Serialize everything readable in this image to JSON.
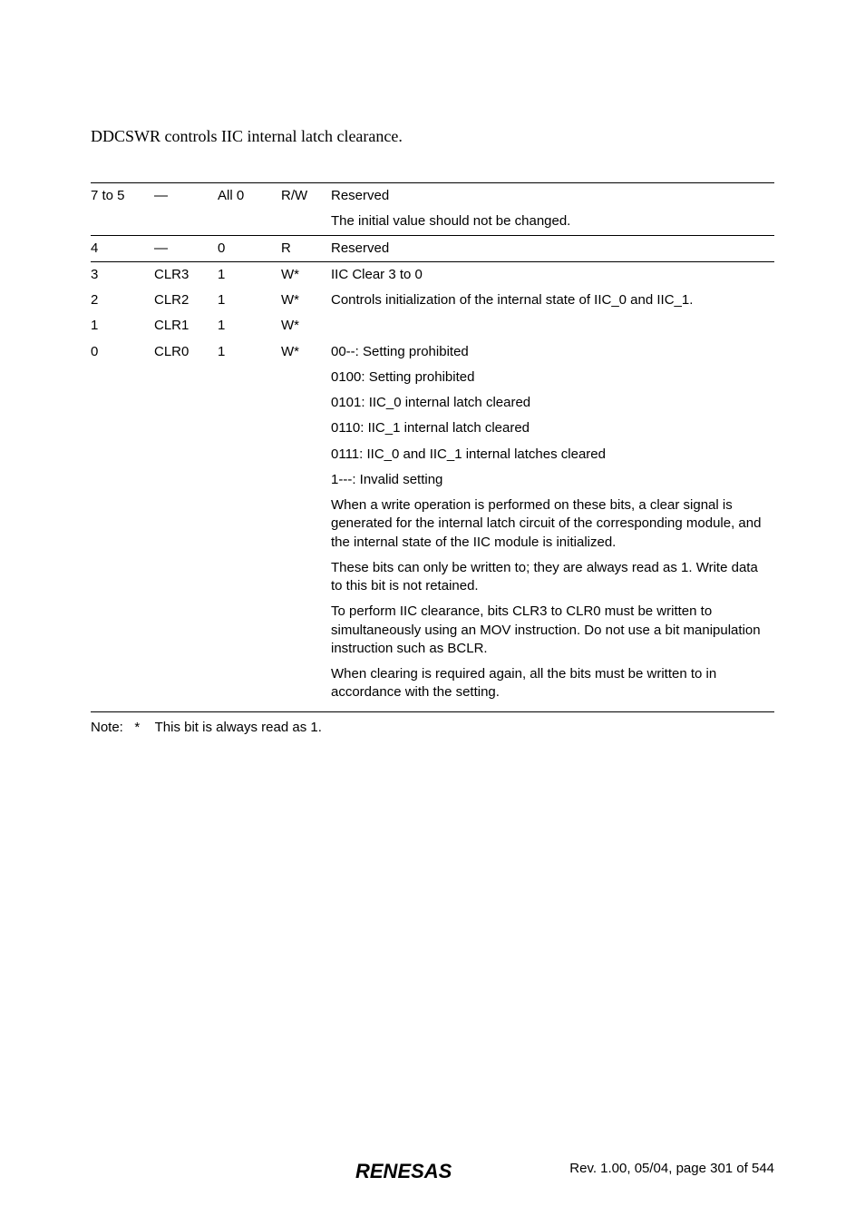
{
  "intro": "DDCSWR controls IIC internal latch clearance.",
  "rows": {
    "r0_bit": "7 to 5",
    "r0_name": "—",
    "r0_init": "All 0",
    "r0_rw": "R/W",
    "r0_desc": "Reserved",
    "r0_desc2": "The initial value should not be changed.",
    "r1_bit": "4",
    "r1_name": "—",
    "r1_init": "0",
    "r1_rw": "R",
    "r1_desc": "Reserved",
    "r2_bit": "3",
    "r2_name": "CLR3",
    "r2_init": "1",
    "r2_rw": "W*",
    "r2_desc": "IIC Clear 3 to 0",
    "r3_bit": "2",
    "r3_name": "CLR2",
    "r3_init": "1",
    "r3_rw": "W*",
    "r3_desc": "Controls initialization of the internal state of IIC_0 and IIC_1.",
    "r4_bit": "1",
    "r4_name": "CLR1",
    "r4_init": "1",
    "r4_rw": "W*",
    "r5_bit": "0",
    "r5_name": "CLR0",
    "r5_init": "1",
    "r5_rw": "W*",
    "d1": "00--: Setting prohibited",
    "d2": "0100: Setting prohibited",
    "d3": "0101: IIC_0 internal latch cleared",
    "d4": "0110: IIC_1 internal latch cleared",
    "d5": "0111: IIC_0 and IIC_1 internal latches cleared",
    "d6": "1---: Invalid setting",
    "d7": "When a write operation is performed on these bits, a clear signal is generated for the internal latch circuit of the corresponding module, and the internal state of the IIC module is initialized.",
    "d8": "These bits can only be written to; they are always read as 1. Write data to this bit is not retained.",
    "d9": "To perform IIC clearance, bits CLR3 to CLR0 must be written to simultaneously using an MOV instruction. Do not use a bit manipulation instruction such as BCLR.",
    "d10": "When clearing is required again, all the bits must be written to in accordance with the setting."
  },
  "note_label": "Note:",
  "note_mark": "*",
  "note_text": "This bit is always read as 1.",
  "footer_text": "Rev. 1.00, 05/04, page 301 of 544",
  "colors": {
    "text": "#000000",
    "bg": "#ffffff",
    "rule": "#000000"
  }
}
